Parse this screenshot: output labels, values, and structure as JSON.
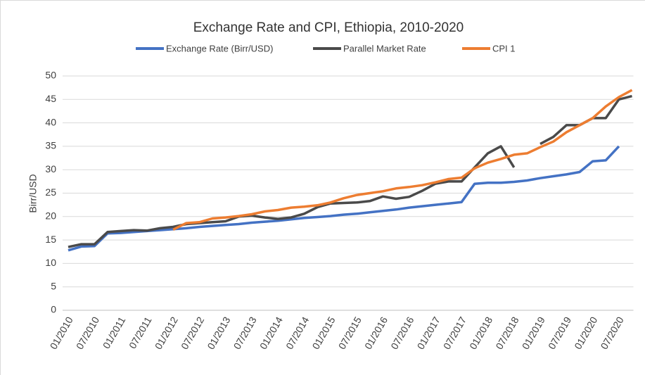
{
  "chart_data": {
    "type": "line",
    "title": "Exchange Rate and CPI, Ethiopia, 2010-2020",
    "y_label": "Birr/USD",
    "categories": [
      "01/2010",
      null,
      "07/2010",
      null,
      "01/2011",
      null,
      "07/2011",
      null,
      "01/2012",
      null,
      "07/2012",
      null,
      "01/2013",
      null,
      "07/2013",
      null,
      "01/2014",
      null,
      "07/2014",
      null,
      "01/2015",
      null,
      "07/2015",
      null,
      "01/2016",
      null,
      "07/2016",
      null,
      "01/2017",
      null,
      "07/2017",
      null,
      "01/2018",
      null,
      "07/2018",
      null,
      "01/2019",
      null,
      "07/2019",
      null,
      "01/2020",
      null,
      "07/2020",
      null
    ],
    "series": [
      {
        "name": "Exchange Rate (Birr/USD)",
        "color": "#4472c4",
        "values": [
          12.8,
          13.6,
          13.7,
          16.4,
          16.5,
          16.7,
          16.9,
          17.1,
          17.3,
          17.5,
          17.8,
          18.0,
          18.2,
          18.4,
          18.7,
          18.9,
          19.1,
          19.4,
          19.7,
          19.9,
          20.1,
          20.4,
          20.6,
          20.9,
          21.2,
          21.5,
          21.9,
          22.2,
          22.5,
          22.8,
          23.1,
          27.0,
          27.2,
          27.2,
          27.4,
          27.7,
          28.2,
          28.6,
          29.0,
          29.5,
          31.8,
          32.0,
          35.0,
          null
        ]
      },
      {
        "name": "Parallel Market Rate",
        "color": "#4a4a4a",
        "values": [
          13.5,
          14.1,
          14.1,
          16.7,
          16.9,
          17.1,
          17.0,
          17.5,
          17.8,
          18.4,
          18.6,
          18.8,
          19.0,
          20.0,
          20.2,
          19.8,
          19.5,
          19.8,
          20.6,
          22.0,
          22.8,
          22.9,
          23.0,
          23.3,
          24.3,
          23.8,
          24.2,
          25.5,
          27.0,
          27.5,
          27.5,
          30.5,
          33.5,
          35.0,
          30.5,
          null,
          35.5,
          37.0,
          39.5,
          39.5,
          41.0,
          41.0,
          45.0,
          45.7
        ]
      },
      {
        "name": "CPI 1",
        "color": "#ed7d31",
        "values": [
          null,
          null,
          null,
          null,
          null,
          null,
          null,
          null,
          17.2,
          18.6,
          18.8,
          19.6,
          19.8,
          20.1,
          20.5,
          21.1,
          21.4,
          21.9,
          22.1,
          22.4,
          23.0,
          23.9,
          24.6,
          25.0,
          25.4,
          26.0,
          26.3,
          26.7,
          27.3,
          28.0,
          28.3,
          30.3,
          31.5,
          32.3,
          33.2,
          33.5,
          34.8,
          36.0,
          38.0,
          39.5,
          41.0,
          43.5,
          45.5,
          47.0
        ]
      }
    ],
    "ylim": [
      0,
      50
    ],
    "yticks": [
      0,
      5,
      10,
      15,
      20,
      25,
      30,
      35,
      40,
      45,
      50
    ],
    "grid": true,
    "legend": "top"
  }
}
